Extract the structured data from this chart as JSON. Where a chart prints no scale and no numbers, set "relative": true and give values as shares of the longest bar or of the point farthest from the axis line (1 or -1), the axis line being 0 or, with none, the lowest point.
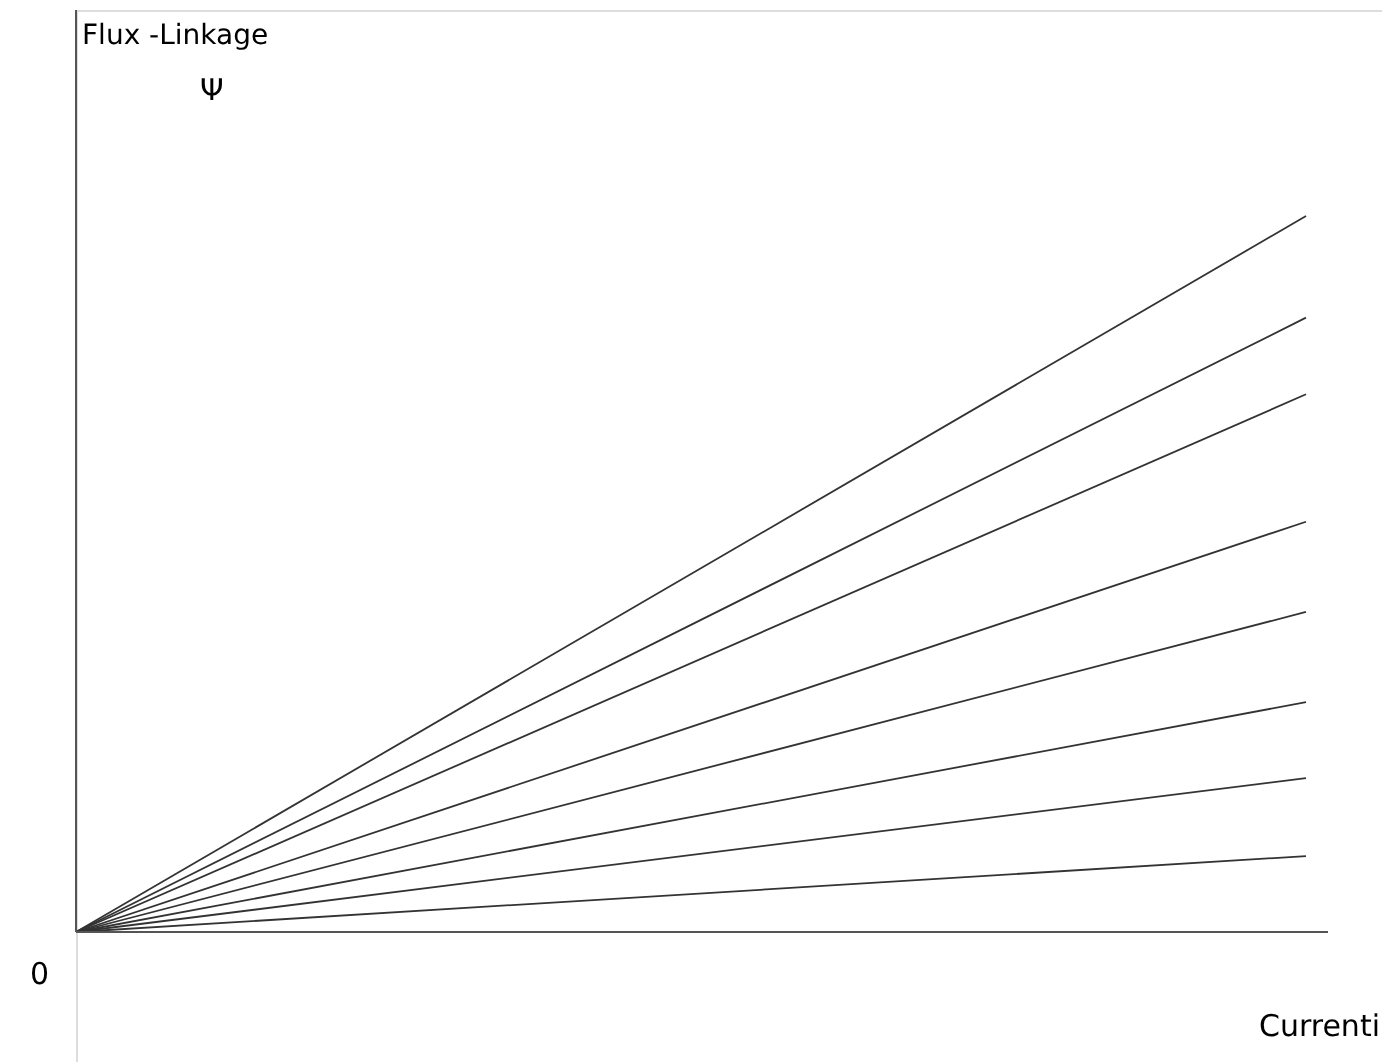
{
  "chart_data": {
    "type": "line",
    "relative": true,
    "xlabel": "Currenti",
    "annotations": [
      "Flux -Linkage",
      "Ψ",
      "0"
    ],
    "categories": [
      null,
      null
    ],
    "series": [
      {
        "color": "#333333",
        "values": [
          0,
          1
        ]
      },
      {
        "color": "#333333",
        "values": [
          0,
          0.858
        ]
      },
      {
        "color": "#333333",
        "values": [
          0,
          0.751
        ]
      },
      {
        "color": "#333333",
        "values": [
          0,
          0.573
        ]
      },
      {
        "color": "#333333",
        "values": [
          0,
          0.447
        ]
      },
      {
        "color": "#333333",
        "values": [
          0,
          0.321
        ]
      },
      {
        "color": "#333333",
        "values": [
          0,
          0.215
        ]
      },
      {
        "color": "#333333",
        "values": [
          0,
          0.106
        ]
      }
    ]
  }
}
